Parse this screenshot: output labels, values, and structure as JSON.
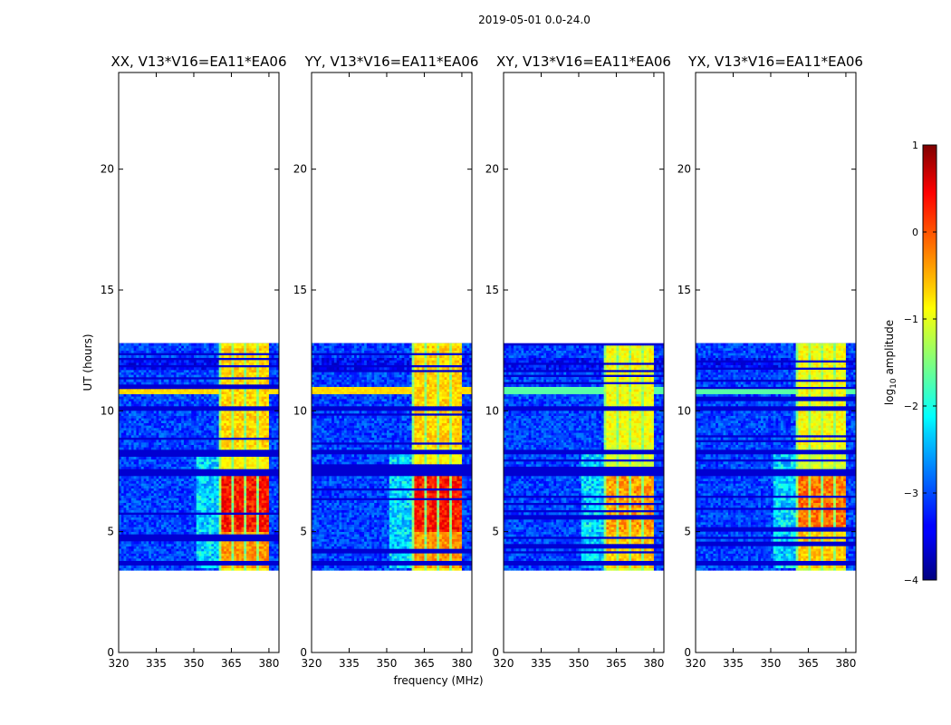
{
  "chart_data": {
    "type": "heatmap",
    "suptitle": "2019-05-01 0.0-24.0",
    "xlabel": "frequency (MHz)",
    "ylabel": "UT (hours)",
    "xlim": [
      320,
      384
    ],
    "ylim": [
      0,
      24
    ],
    "xticks": [
      320,
      335,
      350,
      365,
      380
    ],
    "yticks": [
      0,
      5,
      10,
      15,
      20
    ],
    "data_time_range_hours": [
      3.4,
      12.8
    ],
    "flagged_time_bands_hours": [
      [
        7.35,
        7.55
      ],
      [
        8.2,
        8.45
      ],
      [
        10.05,
        10.2
      ],
      [
        3.65,
        3.75
      ]
    ],
    "bright_frequency_range_mhz": [
      360,
      380
    ],
    "panels": [
      {
        "title": "XX, V13*V16=EA11*EA06",
        "polarization": "XX",
        "peak_log10_amplitude": 0.5
      },
      {
        "title": "YY, V13*V16=EA11*EA06",
        "polarization": "YY",
        "peak_log10_amplitude": 0.5
      },
      {
        "title": "XY, V13*V16=EA11*EA06",
        "polarization": "XY",
        "peak_log10_amplitude": 0.1
      },
      {
        "title": "YX, V13*V16=EA11*EA06",
        "polarization": "YX",
        "peak_log10_amplitude": 0.3
      }
    ],
    "colorbar": {
      "label": "log10 amplitude",
      "label_base": "log",
      "label_sub": "10",
      "label_rest": " amplitude",
      "range": [
        -4,
        1
      ],
      "ticks": [
        1,
        0,
        -1,
        -2,
        -3,
        -4
      ],
      "tick_labels": [
        "1",
        "0",
        "−1",
        "−2",
        "−3",
        "−4"
      ],
      "colormap": "jet"
    }
  }
}
